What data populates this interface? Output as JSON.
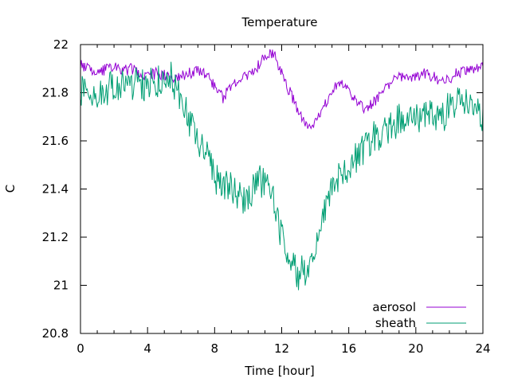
{
  "chart_data": {
    "type": "line",
    "title": "Temperature",
    "xlabel": "Time [hour]",
    "ylabel": "C",
    "xlim": [
      0,
      24
    ],
    "ylim": [
      20.8,
      22
    ],
    "xticks": [
      0,
      4,
      8,
      12,
      16,
      20,
      24
    ],
    "xtick_labels": [
      "0",
      "4",
      "8",
      "12",
      "16",
      "20",
      "24"
    ],
    "yticks": [
      20.8,
      21,
      21.2,
      21.4,
      21.6,
      21.8,
      22
    ],
    "ytick_labels": [
      "20.8",
      "21",
      "21.2",
      "21.4",
      "21.6",
      "21.8",
      "22"
    ],
    "grid": false,
    "legend_position": "bottom-right",
    "series": [
      {
        "name": "aerosol",
        "color": "#9400d3",
        "x": [
          0,
          0.5,
          1,
          1.5,
          2,
          2.5,
          3,
          3.5,
          4,
          4.5,
          5,
          5.5,
          6,
          6.5,
          7,
          7.5,
          8,
          8.5,
          9,
          9.5,
          10,
          10.5,
          11,
          11.5,
          12,
          12.5,
          13,
          13.5,
          14,
          14.5,
          15,
          15.5,
          16,
          16.5,
          17,
          17.5,
          18,
          18.5,
          19,
          19.5,
          20,
          20.5,
          21,
          21.5,
          22,
          22.5,
          23,
          23.5,
          24
        ],
        "y": [
          21.92,
          21.9,
          21.88,
          21.9,
          21.91,
          21.89,
          21.9,
          21.88,
          21.87,
          21.88,
          21.87,
          21.86,
          21.87,
          21.88,
          21.89,
          21.88,
          21.82,
          21.78,
          21.82,
          21.86,
          21.87,
          21.9,
          21.96,
          21.97,
          21.88,
          21.8,
          21.72,
          21.66,
          21.67,
          21.73,
          21.82,
          21.84,
          21.8,
          21.76,
          21.73,
          21.76,
          21.8,
          21.84,
          21.86,
          21.86,
          21.86,
          21.88,
          21.87,
          21.84,
          21.86,
          21.88,
          21.89,
          21.9,
          21.92
        ]
      },
      {
        "name": "sheath",
        "color": "#009e73",
        "x": [
          0,
          0.5,
          1,
          1.5,
          2,
          2.5,
          3,
          3.5,
          4,
          4.5,
          5,
          5.5,
          6,
          6.5,
          7,
          7.5,
          8,
          8.5,
          9,
          9.5,
          10,
          10.5,
          11,
          11.5,
          12,
          12.5,
          13,
          13.5,
          14,
          14.5,
          15,
          15.5,
          16,
          16.5,
          17,
          17.5,
          18,
          18.5,
          19,
          19.5,
          20,
          20.5,
          21,
          21.5,
          22,
          22.5,
          23,
          23.5,
          24
        ],
        "y": [
          21.8,
          21.82,
          21.8,
          21.82,
          21.83,
          21.82,
          21.84,
          21.83,
          21.84,
          21.85,
          21.86,
          21.86,
          21.79,
          21.68,
          21.62,
          21.55,
          21.46,
          21.4,
          21.42,
          21.36,
          21.36,
          21.44,
          21.42,
          21.36,
          21.2,
          21.12,
          21.05,
          21.07,
          21.14,
          21.3,
          21.4,
          21.45,
          21.48,
          21.53,
          21.57,
          21.61,
          21.64,
          21.65,
          21.68,
          21.69,
          21.69,
          21.71,
          21.71,
          21.7,
          21.74,
          21.78,
          21.76,
          21.72,
          21.68
        ]
      }
    ]
  }
}
